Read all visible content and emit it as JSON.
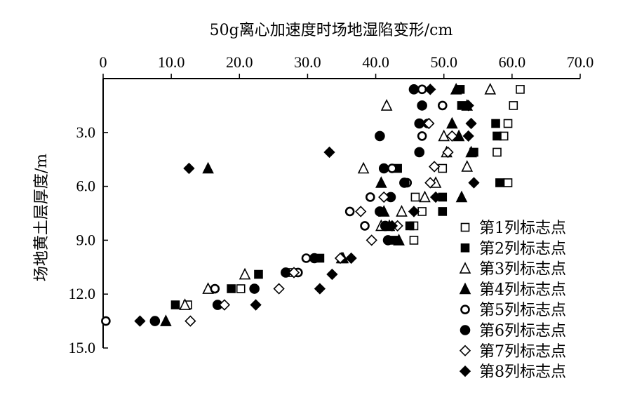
{
  "chart_data": {
    "type": "scatter",
    "title": "50g离心加速度时场地湿陷变形/cm",
    "xlabel": "50g离心加速度时场地湿陷变形/cm",
    "ylabel": "场地黄土层厚度/m",
    "xlim": [
      0,
      70
    ],
    "ylim": [
      0,
      15
    ],
    "y_inverted": true,
    "x_axis_position": "top",
    "x_ticks": [
      "0",
      "10.0",
      "20.0",
      "30.0",
      "40.0",
      "50.0",
      "60.0",
      "70.0"
    ],
    "y_ticks": [
      "3.0",
      "6.0",
      "9.0",
      "12.0",
      "15.0"
    ],
    "legend_position": "bottom-right",
    "series": [
      {
        "name": "第1列标志点",
        "marker": "square-open",
        "x": [
          61.2,
          60.2,
          59.4,
          58.8,
          57.8,
          49.8,
          59.4,
          45.8,
          46.8,
          45.6,
          45.6,
          27.8,
          20.2,
          12.4
        ],
        "y": [
          0.6,
          1.5,
          2.5,
          3.2,
          4.1,
          5.0,
          5.8,
          6.6,
          7.4,
          8.2,
          9.0,
          10.8,
          11.7,
          12.6
        ]
      },
      {
        "name": "第2列标志点",
        "marker": "square-filled",
        "x": [
          52.4,
          52.6,
          57.6,
          57.8,
          54.4,
          43.2,
          58.2,
          49.8,
          49.8,
          45.0,
          42.8,
          31.8,
          22.8,
          18.8,
          10.6
        ],
        "y": [
          0.6,
          1.5,
          2.5,
          3.2,
          4.1,
          5.0,
          5.8,
          6.6,
          7.4,
          8.2,
          9.0,
          10.0,
          10.9,
          11.7,
          12.6
        ]
      },
      {
        "name": "第3列标志点",
        "marker": "triangle-open",
        "x": [
          56.8,
          41.6,
          50.0,
          50.4,
          53.4,
          38.2,
          48.8,
          47.2,
          43.8,
          40.8,
          35.0,
          20.8,
          15.4,
          12.0
        ],
        "y": [
          0.6,
          1.5,
          3.2,
          4.1,
          4.9,
          5.0,
          5.8,
          6.6,
          7.4,
          8.2,
          10.0,
          10.9,
          11.7,
          12.6
        ]
      },
      {
        "name": "第4列标志点",
        "marker": "triangle-filled",
        "x": [
          51.8,
          53.4,
          51.2,
          52.2,
          54.0,
          15.4,
          40.8,
          52.6,
          41.2,
          42.0,
          43.4,
          35.2,
          9.2
        ],
        "y": [
          0.6,
          1.5,
          2.5,
          3.2,
          4.1,
          5.0,
          5.8,
          6.6,
          7.4,
          8.2,
          9.0,
          10.0,
          13.5
        ]
      },
      {
        "name": "第5列标志点",
        "marker": "circle-open",
        "x": [
          46.8,
          49.8,
          47.6,
          46.8,
          42.4,
          44.6,
          39.2,
          36.2,
          38.4,
          29.8,
          28.6,
          16.4,
          0.4
        ],
        "y": [
          0.6,
          1.5,
          2.5,
          3.2,
          5.0,
          5.8,
          6.6,
          7.4,
          8.2,
          10.0,
          10.8,
          11.7,
          13.5
        ]
      },
      {
        "name": "第6列标志点",
        "marker": "circle-filled",
        "x": [
          45.6,
          46.8,
          46.4,
          40.6,
          46.4,
          41.2,
          44.2,
          42.2,
          40.6,
          41.4,
          41.8,
          31.0,
          26.8,
          22.2,
          16.8,
          7.6
        ],
        "y": [
          0.6,
          1.5,
          2.5,
          3.2,
          4.1,
          5.0,
          5.8,
          6.6,
          7.4,
          8.2,
          9.0,
          10.0,
          10.8,
          11.7,
          12.6,
          13.5
        ]
      },
      {
        "name": "第7列标志点",
        "marker": "diamond-open",
        "x": [
          47.8,
          51.2,
          50.6,
          48.6,
          48.0,
          41.2,
          37.8,
          43.2,
          39.4,
          34.8,
          28.0,
          25.8,
          17.8,
          12.8
        ],
        "y": [
          2.5,
          3.2,
          4.1,
          4.9,
          5.8,
          6.6,
          7.4,
          8.2,
          9.0,
          10.0,
          10.8,
          11.7,
          12.6,
          13.5
        ]
      },
      {
        "name": "第8列标志点",
        "marker": "diamond-filled",
        "x": [
          48.0,
          53.6,
          54.0,
          53.6,
          33.2,
          12.6,
          54.4,
          48.8,
          45.6,
          42.4,
          36.4,
          33.6,
          31.8,
          22.4,
          5.4
        ],
        "y": [
          0.6,
          1.5,
          2.5,
          3.2,
          4.1,
          5.0,
          5.8,
          6.6,
          7.4,
          8.2,
          10.0,
          10.9,
          11.7,
          12.6,
          13.5
        ]
      }
    ]
  }
}
